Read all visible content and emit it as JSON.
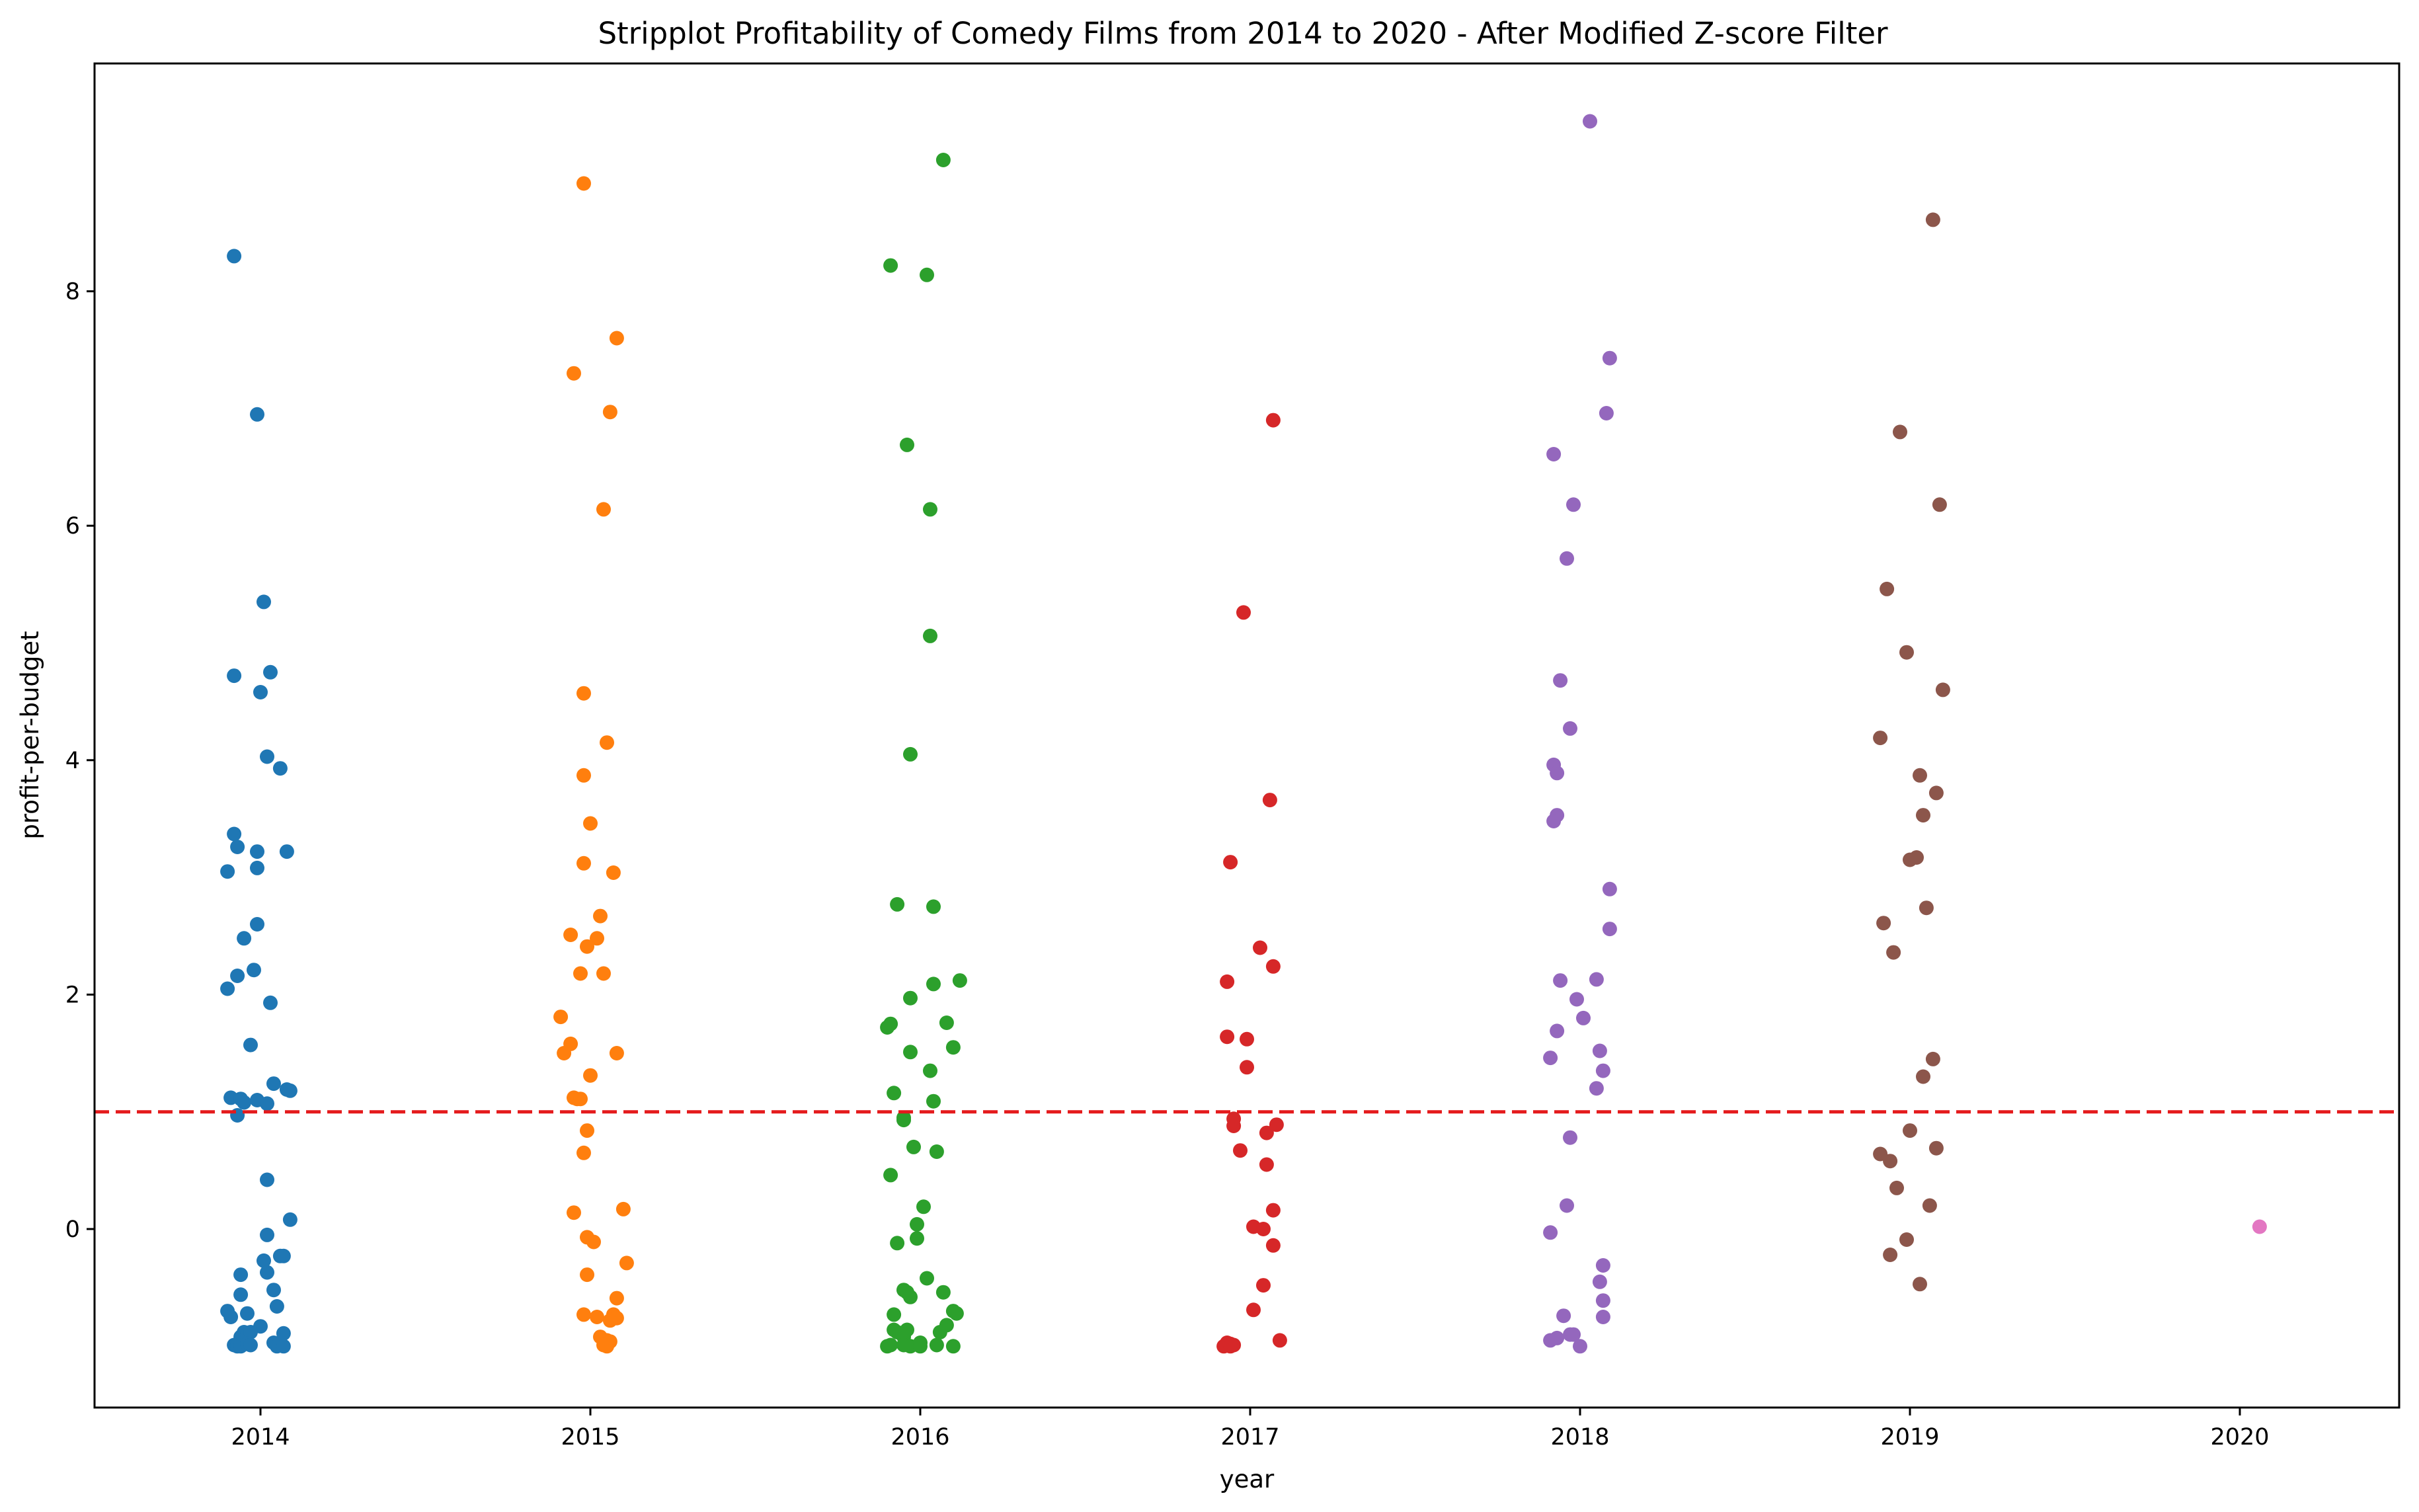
{
  "chart_data": {
    "type": "scatter",
    "subtype": "stripplot",
    "title": "Stripplot Profitability of Comedy Films from 2014 to 2020 - After Modified Z-score Filter",
    "xlabel": "year",
    "ylabel": "profit-per-budget",
    "categories": [
      "2014",
      "2015",
      "2016",
      "2017",
      "2018",
      "2019",
      "2020"
    ],
    "y_ticks": [
      0,
      2,
      4,
      6,
      8
    ],
    "ylim": [
      -1.55,
      10.0
    ],
    "grid": false,
    "legend": "none",
    "reference_line": {
      "y": 1.0,
      "style": "dashed",
      "color": "#e41a1c"
    },
    "series": [
      {
        "category": "2014",
        "color": "#1f77b4",
        "points": [
          [
            -0.08,
            8.3
          ],
          [
            -0.01,
            6.95
          ],
          [
            0.01,
            5.35
          ],
          [
            -0.08,
            4.72
          ],
          [
            0.03,
            4.75
          ],
          [
            0.0,
            4.58
          ],
          [
            0.02,
            4.03
          ],
          [
            0.06,
            3.93
          ],
          [
            -0.08,
            3.37
          ],
          [
            -0.07,
            3.26
          ],
          [
            -0.01,
            3.22
          ],
          [
            0.08,
            3.22
          ],
          [
            -0.1,
            3.05
          ],
          [
            -0.01,
            3.08
          ],
          [
            -0.01,
            2.6
          ],
          [
            -0.05,
            2.48
          ],
          [
            -0.07,
            2.16
          ],
          [
            -0.02,
            2.21
          ],
          [
            -0.1,
            2.05
          ],
          [
            0.03,
            1.93
          ],
          [
            -0.03,
            1.57
          ],
          [
            0.04,
            1.24
          ],
          [
            0.08,
            1.19
          ],
          [
            0.09,
            1.18
          ],
          [
            -0.09,
            1.12
          ],
          [
            -0.06,
            1.11
          ],
          [
            -0.01,
            1.1
          ],
          [
            0.02,
            1.07
          ],
          [
            -0.05,
            1.08
          ],
          [
            -0.07,
            0.97
          ],
          [
            0.02,
            0.42
          ],
          [
            0.09,
            0.08
          ],
          [
            0.02,
            -0.05
          ],
          [
            -0.06,
            -0.39
          ],
          [
            0.01,
            -0.27
          ],
          [
            0.02,
            -0.37
          ],
          [
            0.06,
            -0.23
          ],
          [
            0.07,
            -0.23
          ],
          [
            0.04,
            -0.52
          ],
          [
            -0.06,
            -0.56
          ],
          [
            -0.1,
            -0.7
          ],
          [
            -0.09,
            -0.75
          ],
          [
            -0.04,
            -0.72
          ],
          [
            0.05,
            -0.66
          ],
          [
            0.0,
            -0.83
          ],
          [
            -0.06,
            -0.92
          ],
          [
            -0.05,
            -0.88
          ],
          [
            -0.04,
            -0.9
          ],
          [
            -0.03,
            -0.88
          ],
          [
            0.07,
            -0.89
          ],
          [
            -0.08,
            -0.99
          ],
          [
            -0.07,
            -1.0
          ],
          [
            -0.06,
            -1.0
          ],
          [
            -0.04,
            -0.98
          ],
          [
            -0.03,
            -0.99
          ],
          [
            0.04,
            -0.97
          ],
          [
            0.05,
            -1.0
          ],
          [
            0.07,
            -1.0
          ]
        ]
      },
      {
        "category": "2015",
        "color": "#ff7f0e",
        "points": [
          [
            -0.02,
            8.92
          ],
          [
            0.08,
            7.6
          ],
          [
            -0.05,
            7.3
          ],
          [
            0.06,
            6.97
          ],
          [
            0.04,
            6.14
          ],
          [
            -0.02,
            4.57
          ],
          [
            0.05,
            4.15
          ],
          [
            -0.02,
            3.87
          ],
          [
            0.0,
            3.46
          ],
          [
            -0.02,
            3.12
          ],
          [
            0.07,
            3.04
          ],
          [
            0.03,
            2.67
          ],
          [
            -0.06,
            2.51
          ],
          [
            0.02,
            2.48
          ],
          [
            -0.01,
            2.41
          ],
          [
            -0.03,
            2.18
          ],
          [
            0.04,
            2.18
          ],
          [
            -0.09,
            1.81
          ],
          [
            -0.06,
            1.58
          ],
          [
            -0.08,
            1.5
          ],
          [
            0.08,
            1.5
          ],
          [
            0.0,
            1.31
          ],
          [
            -0.05,
            1.12
          ],
          [
            -0.04,
            1.11
          ],
          [
            -0.03,
            1.11
          ],
          [
            -0.01,
            0.84
          ],
          [
            -0.02,
            0.65
          ],
          [
            -0.05,
            0.14
          ],
          [
            0.1,
            0.17
          ],
          [
            -0.01,
            -0.07
          ],
          [
            0.01,
            -0.11
          ],
          [
            0.11,
            -0.29
          ],
          [
            -0.01,
            -0.39
          ],
          [
            0.08,
            -0.59
          ],
          [
            -0.02,
            -0.73
          ],
          [
            0.02,
            -0.75
          ],
          [
            0.07,
            -0.73
          ],
          [
            0.08,
            -0.76
          ],
          [
            0.06,
            -0.78
          ],
          [
            0.03,
            -0.92
          ],
          [
            0.05,
            -0.95
          ],
          [
            0.06,
            -0.96
          ],
          [
            0.04,
            -0.99
          ],
          [
            0.05,
            -1.0
          ]
        ]
      },
      {
        "category": "2016",
        "color": "#2ca02c",
        "points": [
          [
            0.07,
            9.12
          ],
          [
            -0.09,
            8.22
          ],
          [
            0.02,
            8.14
          ],
          [
            -0.04,
            6.69
          ],
          [
            0.03,
            6.14
          ],
          [
            0.03,
            5.06
          ],
          [
            -0.03,
            4.05
          ],
          [
            -0.07,
            2.77
          ],
          [
            0.04,
            2.75
          ],
          [
            0.12,
            2.12
          ],
          [
            0.04,
            2.09
          ],
          [
            -0.03,
            1.97
          ],
          [
            0.08,
            1.76
          ],
          [
            -0.09,
            1.75
          ],
          [
            -0.1,
            1.72
          ],
          [
            0.1,
            1.55
          ],
          [
            -0.03,
            1.51
          ],
          [
            0.03,
            1.35
          ],
          [
            -0.08,
            1.16
          ],
          [
            0.04,
            1.09
          ],
          [
            -0.05,
            0.95
          ],
          [
            -0.05,
            0.93
          ],
          [
            -0.02,
            0.7
          ],
          [
            0.05,
            0.66
          ],
          [
            -0.09,
            0.46
          ],
          [
            0.01,
            0.19
          ],
          [
            -0.01,
            0.04
          ],
          [
            -0.07,
            -0.12
          ],
          [
            -0.01,
            -0.08
          ],
          [
            0.02,
            -0.42
          ],
          [
            -0.05,
            -0.52
          ],
          [
            -0.04,
            -0.54
          ],
          [
            0.07,
            -0.54
          ],
          [
            -0.03,
            -0.58
          ],
          [
            0.1,
            -0.7
          ],
          [
            0.11,
            -0.72
          ],
          [
            -0.08,
            -0.73
          ],
          [
            -0.08,
            -0.86
          ],
          [
            -0.07,
            -0.88
          ],
          [
            -0.05,
            -0.92
          ],
          [
            -0.04,
            -0.86
          ],
          [
            0.08,
            -0.82
          ],
          [
            0.06,
            -0.88
          ],
          [
            -0.1,
            -1.0
          ],
          [
            -0.09,
            -0.99
          ],
          [
            -0.05,
            -0.99
          ],
          [
            -0.03,
            -1.0
          ],
          [
            0.0,
            -0.97
          ],
          [
            0.0,
            -1.0
          ],
          [
            0.05,
            -0.99
          ],
          [
            0.1,
            -1.0
          ]
        ]
      },
      {
        "category": "2017",
        "color": "#d62728",
        "points": [
          [
            0.07,
            6.9
          ],
          [
            -0.02,
            5.26
          ],
          [
            0.06,
            3.66
          ],
          [
            -0.06,
            3.13
          ],
          [
            0.03,
            2.4
          ],
          [
            0.07,
            2.24
          ],
          [
            -0.07,
            2.11
          ],
          [
            -0.07,
            1.64
          ],
          [
            -0.01,
            1.62
          ],
          [
            -0.01,
            1.38
          ],
          [
            -0.05,
            0.94
          ],
          [
            -0.05,
            0.88
          ],
          [
            0.05,
            0.82
          ],
          [
            0.08,
            0.89
          ],
          [
            -0.03,
            0.67
          ],
          [
            0.05,
            0.55
          ],
          [
            0.07,
            0.16
          ],
          [
            0.01,
            0.02
          ],
          [
            0.04,
            0.0
          ],
          [
            0.07,
            -0.14
          ],
          [
            0.04,
            -0.48
          ],
          [
            0.01,
            -0.69
          ],
          [
            -0.07,
            -0.97
          ],
          [
            -0.06,
            -0.98
          ],
          [
            -0.05,
            -0.99
          ],
          [
            -0.08,
            -1.0
          ],
          [
            -0.06,
            -1.0
          ],
          [
            0.09,
            -0.95
          ]
        ]
      },
      {
        "category": "2018",
        "color": "#9467bd",
        "points": [
          [
            0.03,
            9.45
          ],
          [
            0.09,
            7.43
          ],
          [
            0.08,
            6.96
          ],
          [
            -0.08,
            6.61
          ],
          [
            -0.02,
            6.18
          ],
          [
            -0.04,
            5.72
          ],
          [
            -0.06,
            4.68
          ],
          [
            -0.03,
            4.27
          ],
          [
            -0.08,
            3.96
          ],
          [
            -0.07,
            3.89
          ],
          [
            -0.07,
            3.53
          ],
          [
            -0.08,
            3.48
          ],
          [
            0.09,
            2.9
          ],
          [
            0.09,
            2.56
          ],
          [
            -0.06,
            2.12
          ],
          [
            0.05,
            2.13
          ],
          [
            -0.01,
            1.96
          ],
          [
            0.01,
            1.8
          ],
          [
            -0.07,
            1.69
          ],
          [
            0.06,
            1.52
          ],
          [
            -0.09,
            1.46
          ],
          [
            0.07,
            1.35
          ],
          [
            0.05,
            1.2
          ],
          [
            -0.03,
            0.78
          ],
          [
            -0.04,
            0.2
          ],
          [
            -0.09,
            -0.03
          ],
          [
            0.07,
            -0.31
          ],
          [
            0.06,
            -0.45
          ],
          [
            0.07,
            -0.61
          ],
          [
            -0.05,
            -0.74
          ],
          [
            0.07,
            -0.75
          ],
          [
            -0.03,
            -0.9
          ],
          [
            -0.07,
            -0.93
          ],
          [
            -0.09,
            -0.95
          ],
          [
            -0.02,
            -0.9
          ],
          [
            0.0,
            -1.0
          ]
        ]
      },
      {
        "category": "2019",
        "color": "#8c564b",
        "points": [
          [
            0.07,
            8.61
          ],
          [
            -0.03,
            6.8
          ],
          [
            0.09,
            6.18
          ],
          [
            -0.07,
            5.46
          ],
          [
            -0.01,
            4.92
          ],
          [
            0.1,
            4.6
          ],
          [
            -0.09,
            4.19
          ],
          [
            0.03,
            3.87
          ],
          [
            0.08,
            3.72
          ],
          [
            0.04,
            3.53
          ],
          [
            0.0,
            3.15
          ],
          [
            0.02,
            3.17
          ],
          [
            0.05,
            2.74
          ],
          [
            -0.08,
            2.61
          ],
          [
            -0.05,
            2.36
          ],
          [
            0.07,
            1.45
          ],
          [
            0.04,
            1.3
          ],
          [
            0.0,
            0.84
          ],
          [
            0.08,
            0.69
          ],
          [
            -0.09,
            0.64
          ],
          [
            -0.06,
            0.58
          ],
          [
            -0.04,
            0.35
          ],
          [
            0.06,
            0.2
          ],
          [
            -0.01,
            -0.09
          ],
          [
            -0.06,
            -0.22
          ],
          [
            0.03,
            -0.47
          ]
        ]
      },
      {
        "category": "2020",
        "color": "#e377c2",
        "points": [
          [
            0.06,
            0.02
          ]
        ]
      }
    ]
  }
}
